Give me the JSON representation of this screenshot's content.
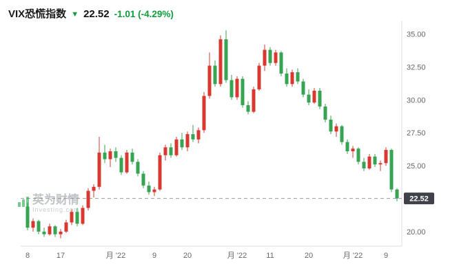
{
  "header": {
    "title": "VIX恐慌指数",
    "arrow": "▼",
    "price": "22.52",
    "change": "-1.01 (-4.29%)"
  },
  "watermark": {
    "line1": "英为财情",
    "line2": "Investing.com"
  },
  "colors": {
    "up": "#d7382f",
    "down": "#36a452",
    "header_green": "#0f9d3c",
    "axis_text": "#666666",
    "dash_line": "#9b9b9b",
    "badge_bg": "#3f4248",
    "badge_text": "#ffffff",
    "grid_border": "#dddddd"
  },
  "chart_data": {
    "type": "candlestick",
    "title": "VIX恐慌指数",
    "last_price": 22.52,
    "ylim": [
      18.9,
      35.6
    ],
    "y_ticks": [
      35.0,
      32.5,
      30.0,
      27.5,
      25.0,
      20.0
    ],
    "price_line": {
      "value": 22.52,
      "label": "22.52"
    },
    "x_ticks": [
      {
        "label": "8",
        "i": 0
      },
      {
        "label": "17",
        "i": 6
      },
      {
        "label": "月 '22",
        "i": 16
      },
      {
        "label": "9",
        "i": 23
      },
      {
        "label": "20",
        "i": 29
      },
      {
        "label": "月 '22",
        "i": 38
      },
      {
        "label": "11",
        "i": 44
      },
      {
        "label": "20",
        "i": 51
      },
      {
        "label": "月 '22",
        "i": 59
      },
      {
        "label": "9",
        "i": 65
      }
    ],
    "candles": [
      [
        21.9,
        22.2,
        20.1,
        20.3
      ],
      [
        20.3,
        21.0,
        20.0,
        20.8
      ],
      [
        20.8,
        20.9,
        19.8,
        20.0
      ],
      [
        20.0,
        20.3,
        19.6,
        19.8
      ],
      [
        19.8,
        20.6,
        19.7,
        20.4
      ],
      [
        20.4,
        20.5,
        19.6,
        19.8
      ],
      [
        19.8,
        20.2,
        19.5,
        20.0
      ],
      [
        20.0,
        20.9,
        19.9,
        20.7
      ],
      [
        20.7,
        21.7,
        20.5,
        21.5
      ],
      [
        21.5,
        21.8,
        20.4,
        20.6
      ],
      [
        20.6,
        22.0,
        20.5,
        21.8
      ],
      [
        21.8,
        23.3,
        21.6,
        23.1
      ],
      [
        23.1,
        23.6,
        22.6,
        23.4
      ],
      [
        23.4,
        27.2,
        23.2,
        26.0
      ],
      [
        26.0,
        26.6,
        25.2,
        25.5
      ],
      [
        25.5,
        26.3,
        24.9,
        26.1
      ],
      [
        26.1,
        26.4,
        25.3,
        25.6
      ],
      [
        25.6,
        25.8,
        24.3,
        24.5
      ],
      [
        24.5,
        26.2,
        24.4,
        26.0
      ],
      [
        26.0,
        26.3,
        25.1,
        25.3
      ],
      [
        25.3,
        25.5,
        24.2,
        24.4
      ],
      [
        24.4,
        24.6,
        23.3,
        23.5
      ],
      [
        23.5,
        23.8,
        22.8,
        23.0
      ],
      [
        23.0,
        23.4,
        22.7,
        23.2
      ],
      [
        23.2,
        26.0,
        23.1,
        25.8
      ],
      [
        25.8,
        26.6,
        25.4,
        26.4
      ],
      [
        26.4,
        26.7,
        25.6,
        25.8
      ],
      [
        25.8,
        27.2,
        25.7,
        27.0
      ],
      [
        27.0,
        27.5,
        26.2,
        26.4
      ],
      [
        26.4,
        27.6,
        26.1,
        27.4
      ],
      [
        27.4,
        28.1,
        26.8,
        27.0
      ],
      [
        27.0,
        27.9,
        26.7,
        27.7
      ],
      [
        27.7,
        30.6,
        27.5,
        30.3
      ],
      [
        30.3,
        33.6,
        30.1,
        32.6
      ],
      [
        32.6,
        33.0,
        31.0,
        31.2
      ],
      [
        31.2,
        34.9,
        31.0,
        34.6
      ],
      [
        34.6,
        35.3,
        31.3,
        31.5
      ],
      [
        31.5,
        31.9,
        30.0,
        30.2
      ],
      [
        30.2,
        31.8,
        30.0,
        31.6
      ],
      [
        31.6,
        31.8,
        29.4,
        29.6
      ],
      [
        29.6,
        29.9,
        28.9,
        29.1
      ],
      [
        29.1,
        31.0,
        29.0,
        30.8
      ],
      [
        30.8,
        32.8,
        30.7,
        32.6
      ],
      [
        32.6,
        34.2,
        32.2,
        33.8
      ],
      [
        33.8,
        34.0,
        32.6,
        32.8
      ],
      [
        32.8,
        33.8,
        32.6,
        33.6
      ],
      [
        33.6,
        33.7,
        31.8,
        32.0
      ],
      [
        32.0,
        32.4,
        31.0,
        31.2
      ],
      [
        31.2,
        32.3,
        31.0,
        32.1
      ],
      [
        32.1,
        32.4,
        31.2,
        31.4
      ],
      [
        31.4,
        31.6,
        30.2,
        30.4
      ],
      [
        30.4,
        30.8,
        29.6,
        29.8
      ],
      [
        29.8,
        30.9,
        29.7,
        30.7
      ],
      [
        30.7,
        30.9,
        29.3,
        29.5
      ],
      [
        29.5,
        29.7,
        28.3,
        28.5
      ],
      [
        28.5,
        28.8,
        27.4,
        27.6
      ],
      [
        27.6,
        28.2,
        27.2,
        28.0
      ],
      [
        28.0,
        28.1,
        26.6,
        26.8
      ],
      [
        26.8,
        27.0,
        25.9,
        26.1
      ],
      [
        26.1,
        26.5,
        25.6,
        26.3
      ],
      [
        26.3,
        26.4,
        25.1,
        25.3
      ],
      [
        25.3,
        25.6,
        24.6,
        24.8
      ],
      [
        24.8,
        25.9,
        24.7,
        25.7
      ],
      [
        25.7,
        25.9,
        24.9,
        25.1
      ],
      [
        25.1,
        25.4,
        24.6,
        25.2
      ],
      [
        25.2,
        26.4,
        25.0,
        26.2
      ],
      [
        26.2,
        26.3,
        23.0,
        23.2
      ],
      [
        23.2,
        23.3,
        22.3,
        22.52
      ]
    ]
  }
}
